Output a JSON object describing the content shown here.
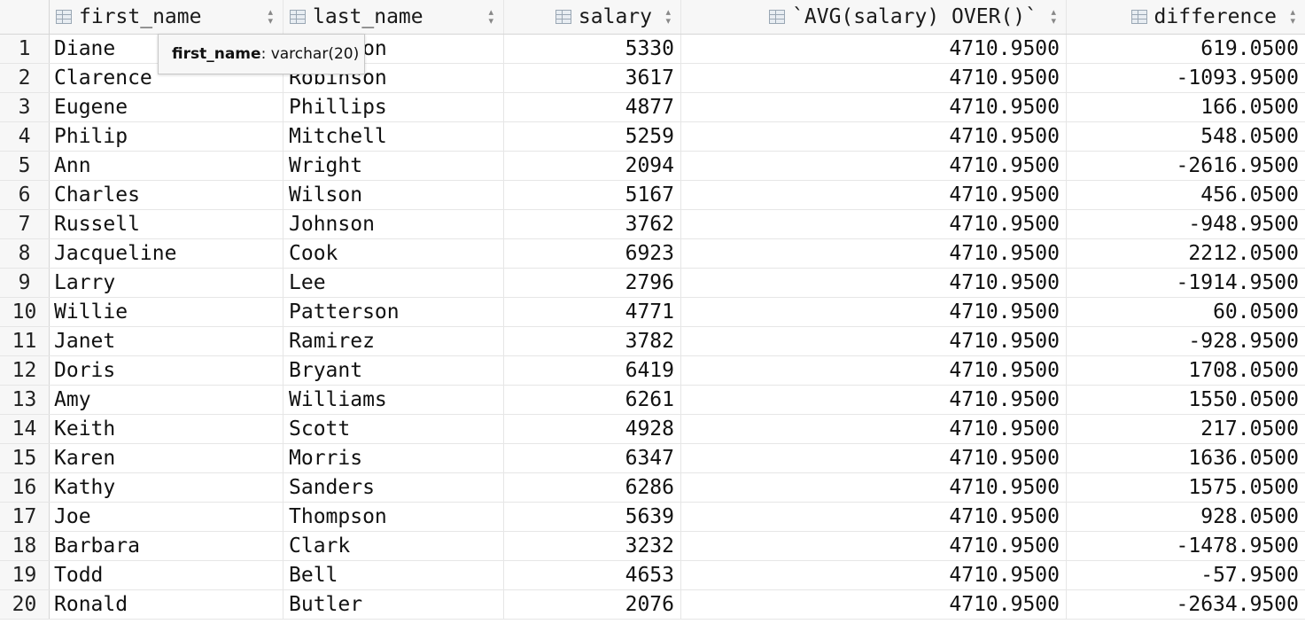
{
  "columns": {
    "first_name": "first_name",
    "last_name": "last_name",
    "salary": "salary",
    "avg": "`AVG(salary) OVER()`",
    "difference": "difference"
  },
  "tooltip": {
    "column": "first_name",
    "type": ": varchar(20)"
  },
  "rows": [
    {
      "n": "1",
      "first_name": "Diane",
      "last_name": "Robinson",
      "salary": "5330",
      "avg": "4710.9500",
      "difference": "619.0500"
    },
    {
      "n": "2",
      "first_name": "Clarence",
      "last_name": "Robinson",
      "salary": "3617",
      "avg": "4710.9500",
      "difference": "-1093.9500"
    },
    {
      "n": "3",
      "first_name": "Eugene",
      "last_name": "Phillips",
      "salary": "4877",
      "avg": "4710.9500",
      "difference": "166.0500"
    },
    {
      "n": "4",
      "first_name": "Philip",
      "last_name": "Mitchell",
      "salary": "5259",
      "avg": "4710.9500",
      "difference": "548.0500"
    },
    {
      "n": "5",
      "first_name": "Ann",
      "last_name": "Wright",
      "salary": "2094",
      "avg": "4710.9500",
      "difference": "-2616.9500"
    },
    {
      "n": "6",
      "first_name": "Charles",
      "last_name": "Wilson",
      "salary": "5167",
      "avg": "4710.9500",
      "difference": "456.0500"
    },
    {
      "n": "7",
      "first_name": "Russell",
      "last_name": "Johnson",
      "salary": "3762",
      "avg": "4710.9500",
      "difference": "-948.9500"
    },
    {
      "n": "8",
      "first_name": "Jacqueline",
      "last_name": "Cook",
      "salary": "6923",
      "avg": "4710.9500",
      "difference": "2212.0500"
    },
    {
      "n": "9",
      "first_name": "Larry",
      "last_name": "Lee",
      "salary": "2796",
      "avg": "4710.9500",
      "difference": "-1914.9500"
    },
    {
      "n": "10",
      "first_name": "Willie",
      "last_name": "Patterson",
      "salary": "4771",
      "avg": "4710.9500",
      "difference": "60.0500"
    },
    {
      "n": "11",
      "first_name": "Janet",
      "last_name": "Ramirez",
      "salary": "3782",
      "avg": "4710.9500",
      "difference": "-928.9500"
    },
    {
      "n": "12",
      "first_name": "Doris",
      "last_name": "Bryant",
      "salary": "6419",
      "avg": "4710.9500",
      "difference": "1708.0500"
    },
    {
      "n": "13",
      "first_name": "Amy",
      "last_name": "Williams",
      "salary": "6261",
      "avg": "4710.9500",
      "difference": "1550.0500"
    },
    {
      "n": "14",
      "first_name": "Keith",
      "last_name": "Scott",
      "salary": "4928",
      "avg": "4710.9500",
      "difference": "217.0500"
    },
    {
      "n": "15",
      "first_name": "Karen",
      "last_name": "Morris",
      "salary": "6347",
      "avg": "4710.9500",
      "difference": "1636.0500"
    },
    {
      "n": "16",
      "first_name": "Kathy",
      "last_name": "Sanders",
      "salary": "6286",
      "avg": "4710.9500",
      "difference": "1575.0500"
    },
    {
      "n": "17",
      "first_name": "Joe",
      "last_name": "Thompson",
      "salary": "5639",
      "avg": "4710.9500",
      "difference": "928.0500"
    },
    {
      "n": "18",
      "first_name": "Barbara",
      "last_name": "Clark",
      "salary": "3232",
      "avg": "4710.9500",
      "difference": "-1478.9500"
    },
    {
      "n": "19",
      "first_name": "Todd",
      "last_name": "Bell",
      "salary": "4653",
      "avg": "4710.9500",
      "difference": "-57.9500"
    },
    {
      "n": "20",
      "first_name": "Ronald",
      "last_name": "Butler",
      "salary": "2076",
      "avg": "4710.9500",
      "difference": "-2634.9500"
    }
  ]
}
